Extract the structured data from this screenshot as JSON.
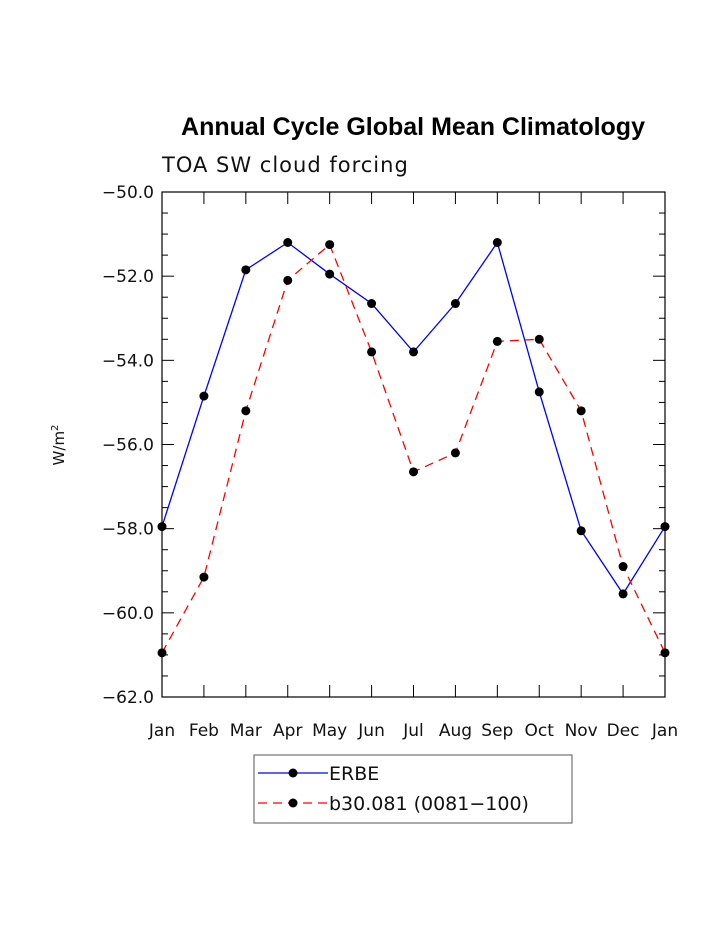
{
  "chart_data": {
    "type": "line",
    "title": "Annual Cycle Global Mean Climatology",
    "subtitle": "TOA SW cloud forcing",
    "xlabel": "",
    "ylabel_base": "W/m",
    "ylabel_sup": "2",
    "categories": [
      "Jan",
      "Feb",
      "Mar",
      "Apr",
      "May",
      "Jun",
      "Jul",
      "Aug",
      "Sep",
      "Oct",
      "Nov",
      "Dec",
      "Jan"
    ],
    "ylim": [
      -62.0,
      -50.0
    ],
    "yticks": [
      "-50.0",
      "-52.0",
      "-54.0",
      "-56.0",
      "-58.0",
      "-60.0",
      "-62.0"
    ],
    "ytick_values": [
      -50,
      -52,
      -54,
      -56,
      -58,
      -60,
      -62
    ],
    "grid": false,
    "legend_position": "bottom-center",
    "series": [
      {
        "name": "ERBE",
        "color": "#0000ff",
        "dash": "solid",
        "values": [
          -57.95,
          -54.85,
          -51.85,
          -51.2,
          -51.95,
          -52.65,
          -53.8,
          -52.65,
          -51.2,
          -54.75,
          -58.05,
          -59.55,
          -57.95
        ]
      },
      {
        "name": "b30.081 (0081-100)",
        "color": "#ff0000",
        "dash": "dashed",
        "values": [
          -60.95,
          -59.15,
          -55.2,
          -52.1,
          -51.25,
          -53.8,
          -56.65,
          -56.2,
          -53.55,
          -53.5,
          -55.2,
          -58.9,
          -60.95
        ]
      }
    ]
  }
}
